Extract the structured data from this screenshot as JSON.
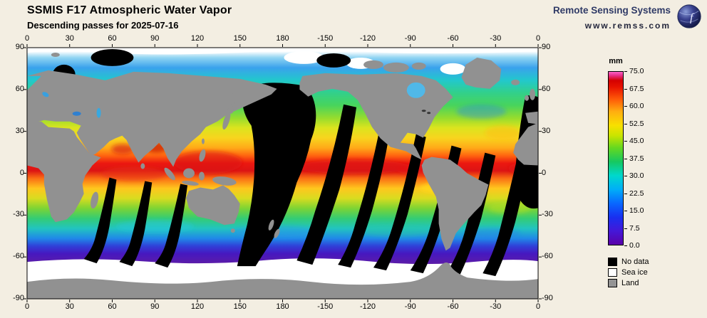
{
  "header": {
    "title": "SSMIS F17 Atmospheric Water Vapor",
    "subtitle": "Descending passes for 2025-07-16"
  },
  "branding": {
    "name": "Remote Sensing Systems",
    "url": "www.remss.com"
  },
  "map": {
    "lon_ticks": [
      "0",
      "30",
      "60",
      "90",
      "120",
      "150",
      "180",
      "-150",
      "-120",
      "-90",
      "-60",
      "-30",
      "0"
    ],
    "lat_ticks": [
      "90",
      "60",
      "30",
      "0",
      "-30",
      "-60",
      "-90"
    ]
  },
  "colorbar": {
    "unit": "mm",
    "min": 0.0,
    "max": 75.0,
    "tick_labels": [
      "75.0",
      "67.5",
      "60.0",
      "52.5",
      "45.0",
      "37.5",
      "30.0",
      "22.5",
      "15.0",
      "7.5",
      "0.0"
    ],
    "gradient_stops": [
      "#5a00a8 0%",
      "#4418d8 8%",
      "#1830f0 16%",
      "#0868ff 24%",
      "#00aef8 32%",
      "#00d8cc 40%",
      "#16c860 48%",
      "#64d820 56%",
      "#c8e400 63%",
      "#f8e000 69%",
      "#ffae10 77%",
      "#ff5c08 84%",
      "#e81400 91%",
      "#d40000 95%",
      "#e8308c 98%",
      "#ff64c8 100%"
    ]
  },
  "legend": {
    "items": [
      {
        "label": "No data",
        "color": "#000000"
      },
      {
        "label": "Sea ice",
        "color": "#ffffff"
      },
      {
        "label": "Land",
        "color": "#949494"
      }
    ]
  },
  "colors": {
    "background": "#f3eee2",
    "land": "#919191",
    "no_data": "#000000",
    "sea_ice": "#ffffff",
    "brand_blue": "#2f3a66"
  },
  "chart_data": {
    "type": "heatmap",
    "title": "SSMIS F17 Atmospheric Water Vapor",
    "subtitle": "Descending passes for 2025-07-16",
    "unit": "mm",
    "value_range": [
      0.0,
      75.0
    ],
    "colorbar_ticks": [
      75.0,
      67.5,
      60.0,
      52.5,
      45.0,
      37.5,
      30.0,
      22.5,
      15.0,
      7.5,
      0.0
    ],
    "x_ticks_longitude": [
      0,
      30,
      60,
      90,
      120,
      150,
      180,
      -150,
      -120,
      -90,
      -60,
      -30,
      0
    ],
    "y_ticks_latitude": [
      90,
      60,
      30,
      0,
      -30,
      -60,
      -90
    ],
    "special_categories": [
      "No data",
      "Sea ice",
      "Land"
    ],
    "legend_position": "right",
    "notes_visible": "Global water vapor field: high values (red/orange) along tropics, low values (blue/purple) at high latitudes, black diagonal orbital swath gaps, gray land, white sea ice"
  }
}
